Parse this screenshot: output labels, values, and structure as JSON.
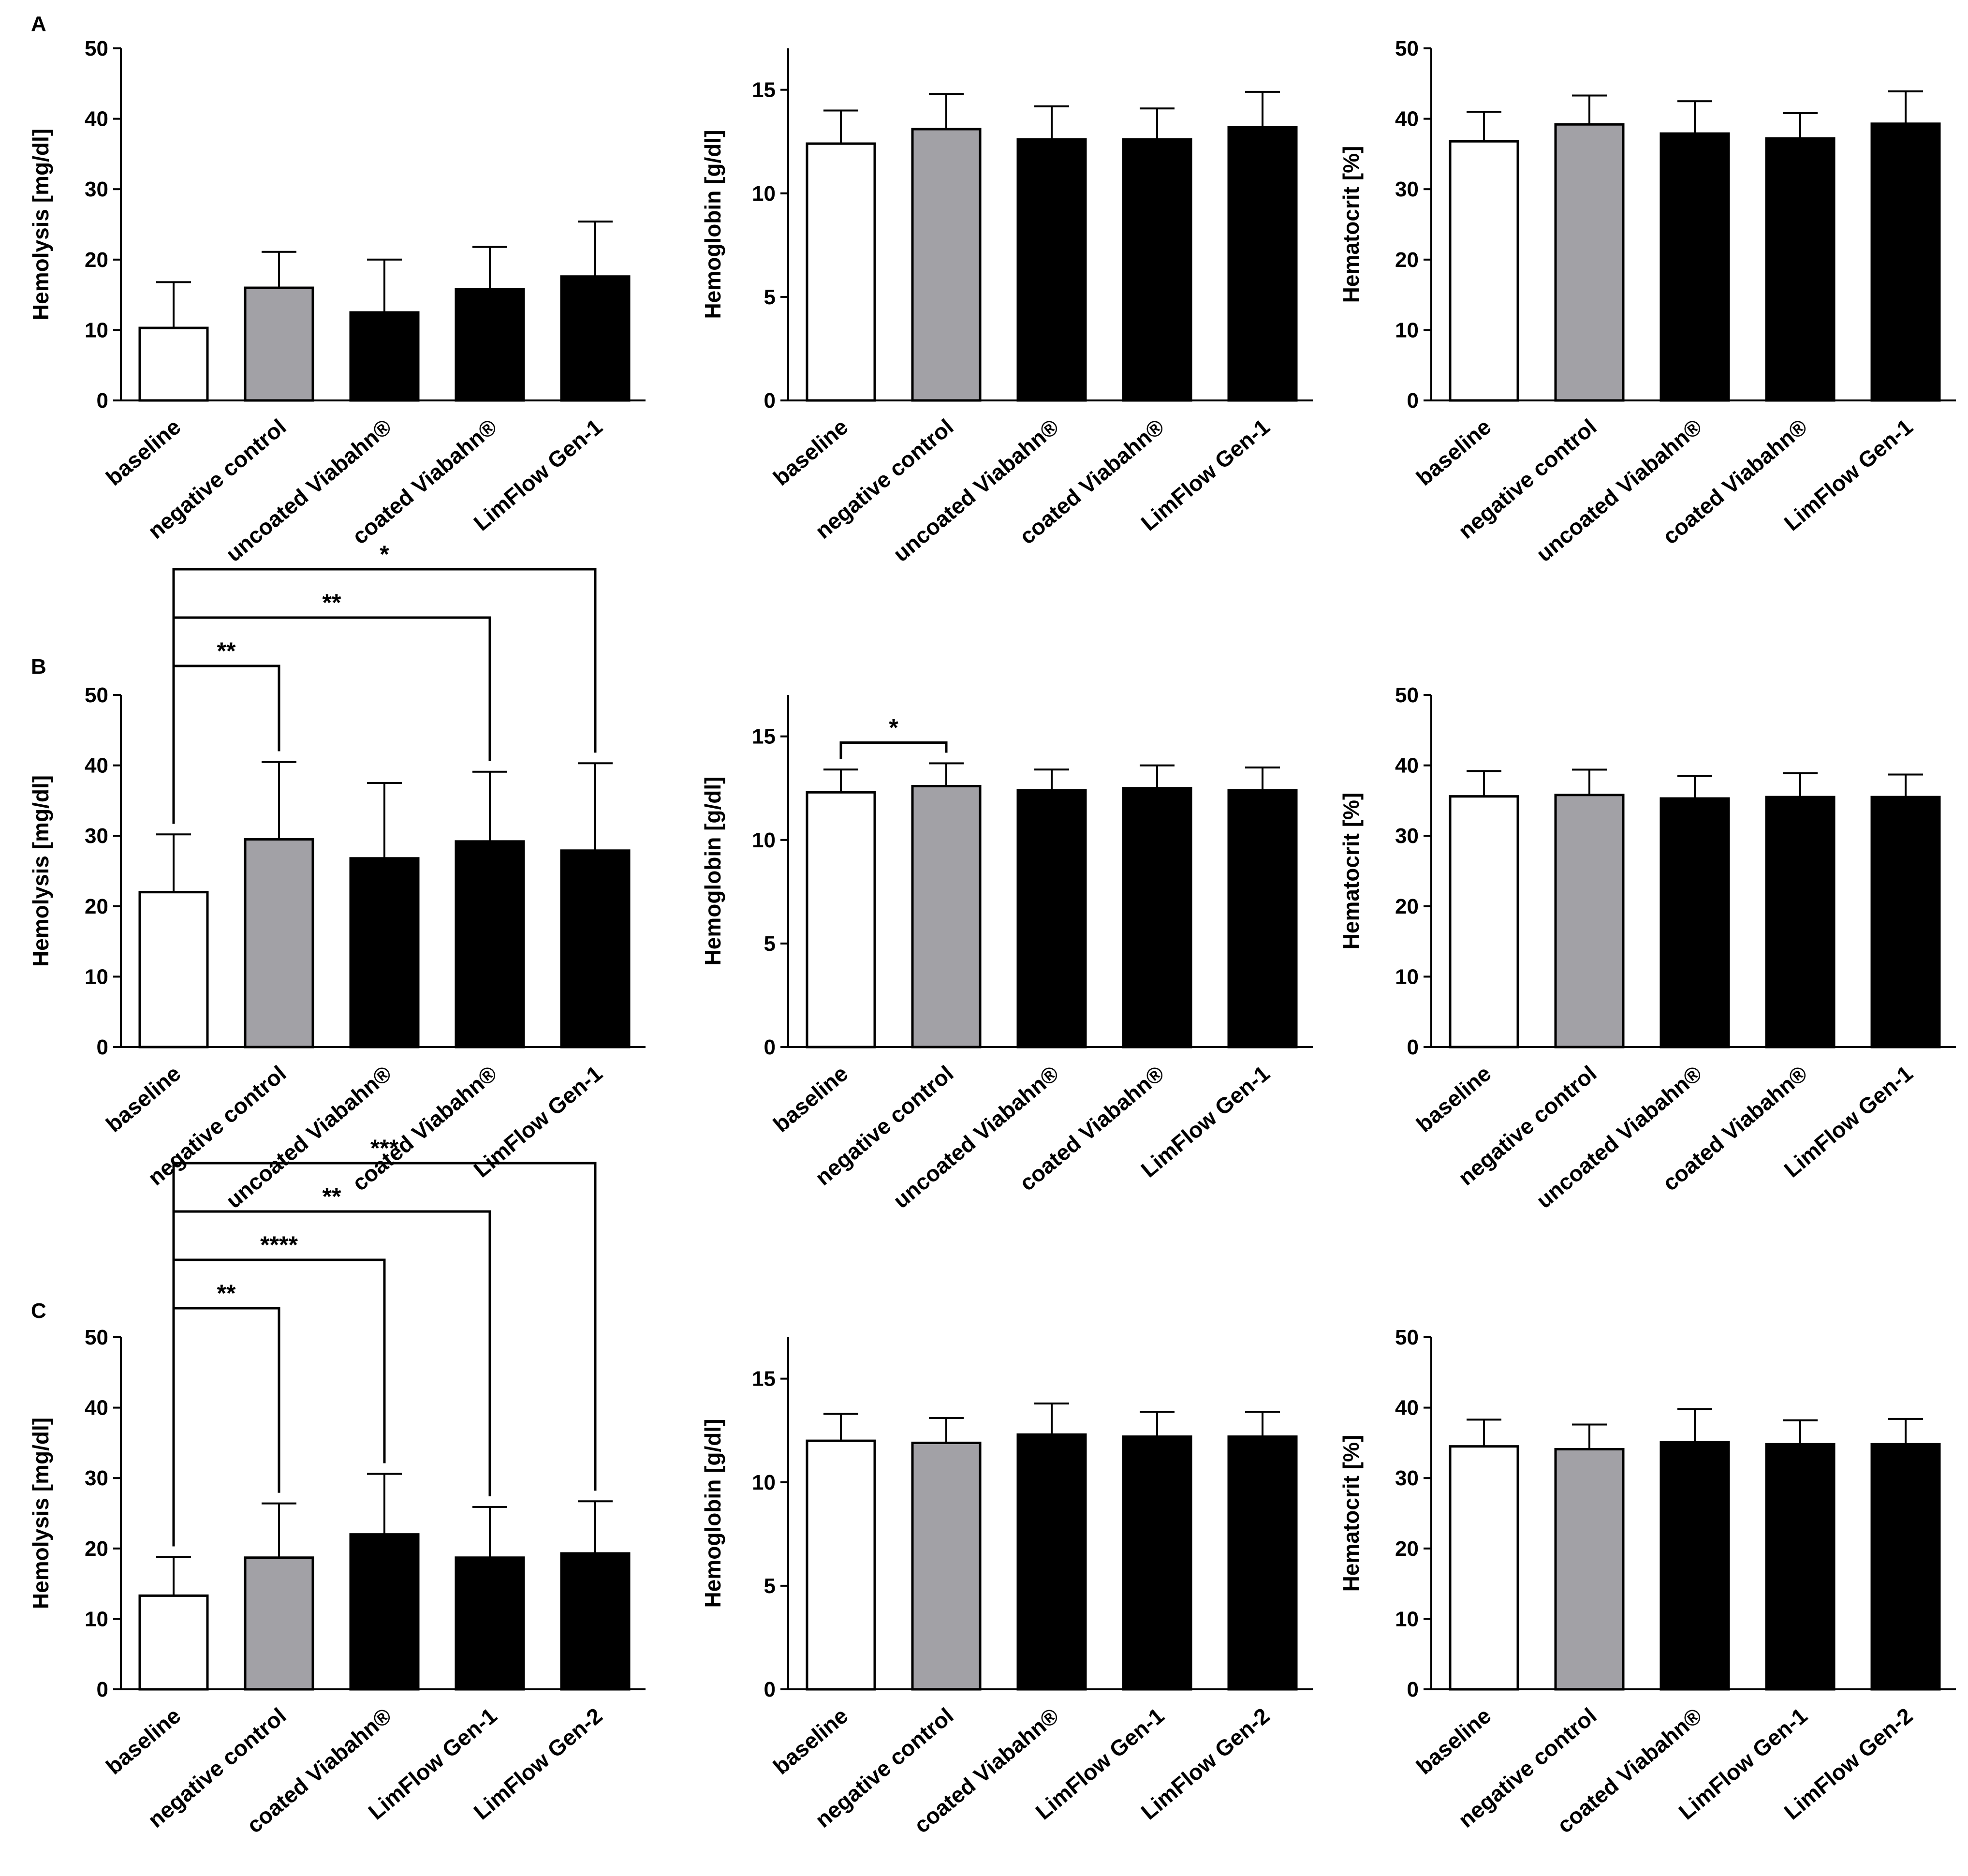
{
  "panels": [
    "A",
    "B",
    "C"
  ],
  "fill_colors": {
    "white": "#ffffff",
    "gray": "#a2a1a6",
    "black": "#000000"
  },
  "chart_data": [
    {
      "id": "A-hemolysis",
      "panel": "A",
      "type": "bar",
      "ylabel": "Hemolysis [mg/dl]",
      "ylim": [
        0,
        50
      ],
      "yticks": [
        0,
        10,
        20,
        30,
        40,
        50
      ],
      "categories": [
        "baseline",
        "negative control",
        "uncoated Viabahn®",
        "coated Viabahn®",
        "LimFlow Gen-1"
      ],
      "values": [
        10.3,
        16.0,
        12.5,
        15.8,
        17.6
      ],
      "errors": [
        6.5,
        5.1,
        7.5,
        6.0,
        7.8
      ],
      "fills": [
        "white",
        "gray",
        "black",
        "black",
        "black"
      ],
      "significance": []
    },
    {
      "id": "A-hemoglobin",
      "panel": "A",
      "type": "bar",
      "ylabel": "Hemoglobin [g/dl]",
      "ylim": [
        0,
        17
      ],
      "yticks": [
        0,
        5,
        10,
        15
      ],
      "categories": [
        "baseline",
        "negative control",
        "uncoated Viabahn®",
        "coated Viabahn®",
        "LimFlow Gen-1"
      ],
      "values": [
        12.4,
        13.1,
        12.6,
        12.6,
        13.2
      ],
      "errors": [
        1.6,
        1.7,
        1.6,
        1.5,
        1.7
      ],
      "fills": [
        "white",
        "gray",
        "black",
        "black",
        "black"
      ],
      "significance": []
    },
    {
      "id": "A-hematocrit",
      "panel": "A",
      "type": "bar",
      "ylabel": "Hematocrit [%]",
      "ylim": [
        0,
        50
      ],
      "yticks": [
        0,
        10,
        20,
        30,
        40,
        50
      ],
      "categories": [
        "baseline",
        "negative control",
        "uncoated Viabahn®",
        "coated Viabahn®",
        "LimFlow Gen-1"
      ],
      "values": [
        36.8,
        39.2,
        37.9,
        37.2,
        39.3
      ],
      "errors": [
        4.2,
        4.1,
        4.6,
        3.6,
        4.6
      ],
      "fills": [
        "white",
        "gray",
        "black",
        "black",
        "black"
      ],
      "significance": []
    },
    {
      "id": "B-hemolysis",
      "panel": "B",
      "type": "bar",
      "ylabel": "Hemolysis [mg/dl]",
      "ylim": [
        0,
        50
      ],
      "yticks": [
        0,
        10,
        20,
        30,
        40,
        50
      ],
      "categories": [
        "baseline",
        "negative control",
        "uncoated Viabahn®",
        "coated Viabahn®",
        "LimFlow Gen-1"
      ],
      "values": [
        22.0,
        29.5,
        26.8,
        29.2,
        27.9
      ],
      "errors": [
        8.2,
        11.0,
        10.7,
        9.9,
        12.4
      ],
      "fills": [
        "white",
        "gray",
        "black",
        "black",
        "black"
      ],
      "significance": [
        {
          "from": 0,
          "to": 1,
          "label": "**",
          "level": 1
        },
        {
          "from": 0,
          "to": 3,
          "label": "**",
          "level": 2
        },
        {
          "from": 0,
          "to": 4,
          "label": "*",
          "level": 3
        }
      ]
    },
    {
      "id": "B-hemoglobin",
      "panel": "B",
      "type": "bar",
      "ylabel": "Hemoglobin [g/dl]",
      "ylim": [
        0,
        17
      ],
      "yticks": [
        0,
        5,
        10,
        15
      ],
      "categories": [
        "baseline",
        "negative control",
        "uncoated Viabahn®",
        "coated Viabahn®",
        "LimFlow Gen-1"
      ],
      "values": [
        12.3,
        12.6,
        12.4,
        12.5,
        12.4
      ],
      "errors": [
        1.1,
        1.1,
        1.0,
        1.1,
        1.1
      ],
      "fills": [
        "white",
        "gray",
        "black",
        "black",
        "black"
      ],
      "significance": [
        {
          "from": 0,
          "to": 1,
          "label": "*",
          "level": 1
        }
      ]
    },
    {
      "id": "B-hematocrit",
      "panel": "B",
      "type": "bar",
      "ylabel": "Hematocrit [%]",
      "ylim": [
        0,
        50
      ],
      "yticks": [
        0,
        10,
        20,
        30,
        40,
        50
      ],
      "categories": [
        "baseline",
        "negative control",
        "uncoated Viabahn®",
        "coated Viabahn®",
        "LimFlow Gen-1"
      ],
      "values": [
        35.6,
        35.8,
        35.3,
        35.5,
        35.5
      ],
      "errors": [
        3.6,
        3.6,
        3.2,
        3.4,
        3.2
      ],
      "fills": [
        "white",
        "gray",
        "black",
        "black",
        "black"
      ],
      "significance": []
    },
    {
      "id": "C-hemolysis",
      "panel": "C",
      "type": "bar",
      "ylabel": "Hemolysis [mg/dl]",
      "ylim": [
        0,
        50
      ],
      "yticks": [
        0,
        10,
        20,
        30,
        40,
        50
      ],
      "categories": [
        "baseline",
        "negative control",
        "coated Viabahn®",
        "LimFlow Gen-1",
        "LimFlow Gen-2"
      ],
      "values": [
        13.3,
        18.7,
        22.0,
        18.7,
        19.3
      ],
      "errors": [
        5.5,
        7.7,
        8.6,
        7.2,
        7.4
      ],
      "fills": [
        "white",
        "gray",
        "black",
        "black",
        "black"
      ],
      "significance": [
        {
          "from": 0,
          "to": 1,
          "label": "**",
          "level": 1
        },
        {
          "from": 0,
          "to": 2,
          "label": "****",
          "level": 2
        },
        {
          "from": 0,
          "to": 3,
          "label": "**",
          "level": 3
        },
        {
          "from": 0,
          "to": 4,
          "label": "***",
          "level": 4
        }
      ]
    },
    {
      "id": "C-hemoglobin",
      "panel": "C",
      "type": "bar",
      "ylabel": "Hemoglobin [g/dl]",
      "ylim": [
        0,
        17
      ],
      "yticks": [
        0,
        5,
        10,
        15
      ],
      "categories": [
        "baseline",
        "negative control",
        "coated Viabahn®",
        "LimFlow Gen-1",
        "LimFlow Gen-2"
      ],
      "values": [
        12.0,
        11.9,
        12.3,
        12.2,
        12.2
      ],
      "errors": [
        1.3,
        1.2,
        1.5,
        1.2,
        1.2
      ],
      "fills": [
        "white",
        "gray",
        "black",
        "black",
        "black"
      ],
      "significance": []
    },
    {
      "id": "C-hematocrit",
      "panel": "C",
      "type": "bar",
      "ylabel": "Hematocrit [%]",
      "ylim": [
        0,
        50
      ],
      "yticks": [
        0,
        10,
        20,
        30,
        40,
        50
      ],
      "categories": [
        "baseline",
        "negative control",
        "coated Viabahn®",
        "LimFlow Gen-1",
        "LimFlow Gen-2"
      ],
      "values": [
        34.5,
        34.1,
        35.1,
        34.8,
        34.8
      ],
      "errors": [
        3.8,
        3.5,
        4.7,
        3.4,
        3.6
      ],
      "fills": [
        "white",
        "gray",
        "black",
        "black",
        "black"
      ],
      "significance": []
    }
  ]
}
